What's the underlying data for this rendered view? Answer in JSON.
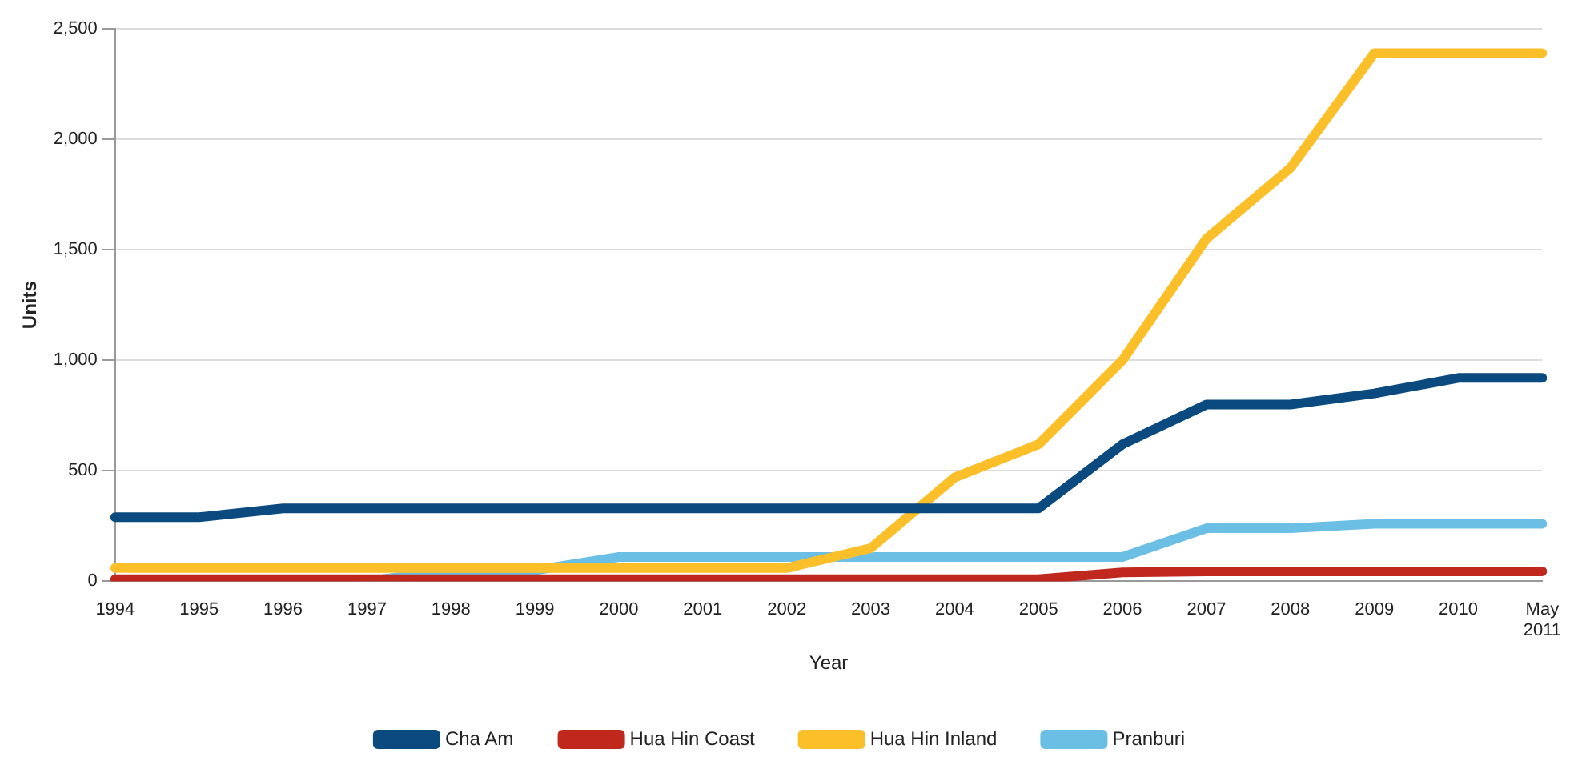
{
  "chart_data": {
    "type": "line",
    "xlabel": "Year",
    "ylabel": "Units",
    "categories": [
      "1994",
      "1995",
      "1996",
      "1997",
      "1998",
      "1999",
      "2000",
      "2001",
      "2002",
      "2003",
      "2004",
      "2005",
      "2006",
      "2007",
      "2008",
      "2009",
      "2010",
      "May 2011"
    ],
    "series": [
      {
        "name": "Cha Am",
        "color": "#0a4a7f",
        "values": [
          290,
          290,
          330,
          330,
          330,
          330,
          330,
          330,
          330,
          330,
          330,
          330,
          620,
          800,
          800,
          850,
          920,
          920
        ]
      },
      {
        "name": "Hua Hin Coast",
        "color": "#c0281e",
        "values": [
          10,
          10,
          10,
          10,
          10,
          10,
          10,
          10,
          10,
          10,
          10,
          10,
          40,
          45,
          45,
          45,
          45,
          45
        ]
      },
      {
        "name": "Hua Hin Inland",
        "color": "#fbbf2a",
        "values": [
          60,
          60,
          60,
          60,
          60,
          60,
          60,
          60,
          60,
          150,
          470,
          620,
          1000,
          1550,
          1870,
          2390,
          2390,
          2390
        ]
      },
      {
        "name": "Pranburi",
        "color": "#6bbfe5",
        "values": [
          null,
          null,
          null,
          0,
          50,
          50,
          110,
          110,
          110,
          110,
          110,
          110,
          110,
          240,
          240,
          260,
          260,
          260
        ]
      }
    ],
    "ylim": [
      0,
      2500
    ],
    "yticks": [
      0,
      500,
      {
        "value": 1000,
        "label": "1,000"
      },
      {
        "value": 1500,
        "label": "1,500"
      },
      {
        "value": 2000,
        "label": "2,000"
      },
      {
        "value": 2500,
        "label": "2,500"
      }
    ],
    "grid": "y",
    "legend": "bottom",
    "marker": "none",
    "line_style": "solid"
  }
}
